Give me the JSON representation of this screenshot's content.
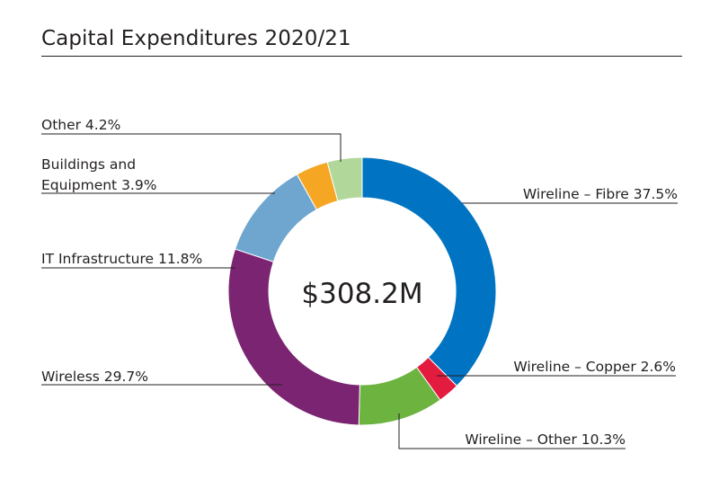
{
  "title": "Capital Expenditures 2020/21",
  "chart_data": {
    "type": "pie",
    "donut": true,
    "center_label": "$308.2M",
    "slices": [
      {
        "label": "Wireline – Fibre 37.5%",
        "value": 37.5,
        "color": "#0074c3"
      },
      {
        "label": "Wireline – Copper 2.6%",
        "value": 2.6,
        "color": "#e31b3e"
      },
      {
        "label": "Wireline – Other 10.3%",
        "value": 10.3,
        "color": "#6cb33f"
      },
      {
        "label": "Wireless 29.7%",
        "value": 29.7,
        "color": "#7b2472"
      },
      {
        "label": "IT Infrastructure 11.8%",
        "value": 11.8,
        "color": "#6ea6cf"
      },
      {
        "label": "Buildings and Equipment 3.9%",
        "label_lines": [
          "Buildings and",
          "Equipment 3.9%"
        ],
        "value": 3.9,
        "color": "#f5a623"
      },
      {
        "label": "Other 4.2%",
        "value": 4.2,
        "color": "#b2d79a"
      }
    ]
  }
}
